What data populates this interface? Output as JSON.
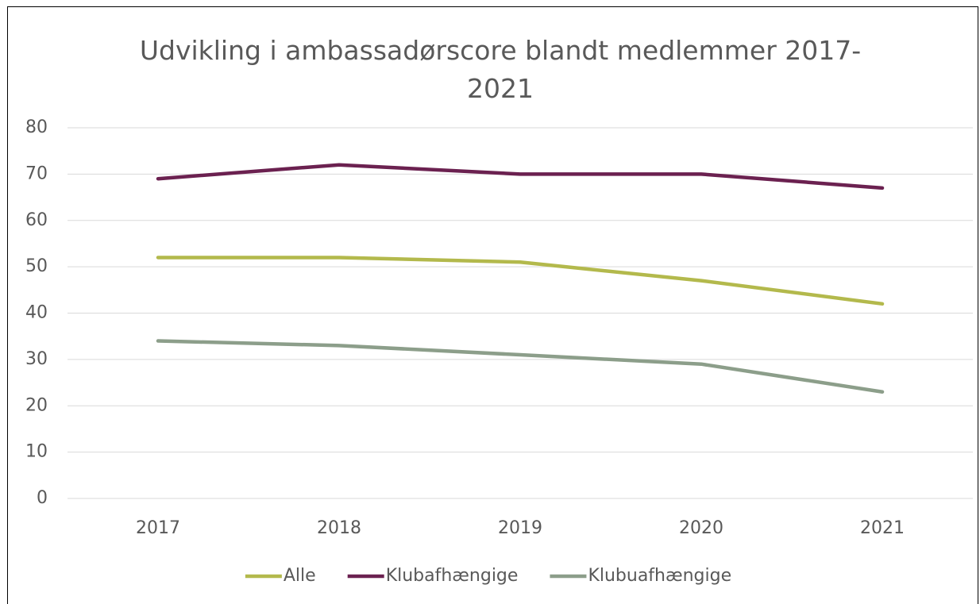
{
  "chart_data": {
    "type": "line",
    "title": "Udvikling i ambassadørscore blandt medlemmer 2017-2021",
    "categories": [
      "2017",
      "2018",
      "2019",
      "2020",
      "2021"
    ],
    "series": [
      {
        "name": "Alle",
        "color": "#b3b94c",
        "values": [
          52,
          52,
          51,
          47,
          42
        ]
      },
      {
        "name": "Klubafhængige",
        "color": "#6b2150",
        "values": [
          69,
          72,
          70,
          70,
          67
        ]
      },
      {
        "name": "Klubuafhængige",
        "color": "#8c9e8a",
        "values": [
          34,
          33,
          31,
          29,
          23
        ]
      }
    ],
    "ylim": [
      0,
      80
    ],
    "yticks": [
      0,
      10,
      20,
      30,
      40,
      50,
      60,
      70,
      80
    ],
    "grid": true,
    "legend": "bottom"
  }
}
